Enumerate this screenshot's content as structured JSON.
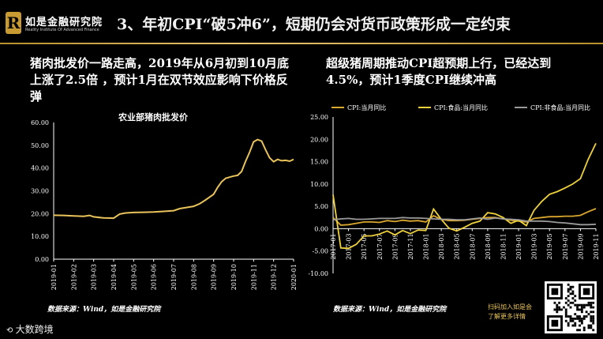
{
  "header": {
    "logo_name": "如是金融研究院",
    "logo_sub": "Reality Institute Of Advanced Finance",
    "title": "3、年初CPI“破5冲6”，短期仍会对货币政策形成一定约束"
  },
  "left_panel": {
    "subtitle": "猪肉批发价一路走高，2019年从6月初到10月底上涨了2.5倍 ，预计1月在双节效应影响下价格反弹",
    "source": "数据来源：Wind，如是金融研究院"
  },
  "right_panel": {
    "subtitle": "超级猪周期推动CPI超预期上行，已经达到4.5%，预计1季度CPI继续冲高",
    "source": "数据来源：Wind，如是金融研究院"
  },
  "footer": {
    "watermark": "大数跨境",
    "qr_caption_line1": "扫码加入如是会",
    "qr_caption_line2": "了解更多详情"
  },
  "chart_data": [
    {
      "type": "line",
      "title": "农业部猪肉批发价",
      "xlabel": "",
      "ylabel": "",
      "ylim": [
        0,
        60
      ],
      "yticks": [
        "0.00",
        "10.00",
        "20.00",
        "30.00",
        "40.00",
        "50.00",
        "60.00"
      ],
      "xticks": [
        "2019-01",
        "2019-02",
        "2019-03",
        "2019-04",
        "2019-05",
        "2019-06",
        "2019-07",
        "2019-08",
        "2019-09",
        "2019-10",
        "2019-11",
        "2019-12",
        "2020-01"
      ],
      "grid": false,
      "color": "#e8c25a",
      "x": [
        0,
        0.5,
        1,
        1.5,
        1.8,
        2,
        2.5,
        3,
        3.3,
        3.6,
        4,
        4.5,
        5,
        5.5,
        6,
        6.3,
        6.6,
        7,
        7.3,
        7.6,
        8,
        8.2,
        8.4,
        8.6,
        8.8,
        9,
        9.2,
        9.4,
        9.6,
        9.8,
        10,
        10.2,
        10.4,
        10.6,
        10.8,
        11,
        11.2,
        11.4,
        11.6,
        11.8,
        12
      ],
      "values": [
        19.3,
        19.2,
        19.0,
        18.8,
        19.2,
        18.6,
        18.1,
        18.0,
        19.8,
        20.3,
        20.5,
        20.6,
        20.7,
        21.0,
        21.3,
        22.2,
        22.6,
        23.2,
        24.3,
        26.0,
        28.5,
        31.5,
        34.0,
        35.5,
        36.0,
        36.5,
        36.8,
        38.5,
        43.0,
        47.0,
        51.5,
        52.5,
        51.8,
        48.0,
        44.5,
        42.8,
        43.8,
        43.2,
        43.4,
        43.0,
        43.8
      ]
    },
    {
      "type": "line",
      "title": "",
      "xlabel": "",
      "ylabel": "",
      "ylim": [
        -10,
        25
      ],
      "yticks": [
        "-10.00",
        "-5.00",
        "0.00",
        "5.00",
        "10.00",
        "15.00",
        "20.00",
        "25.00"
      ],
      "xticks": [
        "2017-01",
        "2017-03",
        "2017-05",
        "2017-07",
        "2017-09",
        "2017-11",
        "2018-01",
        "2018-03",
        "2018-05",
        "2018-07",
        "2018-09",
        "2018-11",
        "2019-01",
        "2019-03",
        "2019-05",
        "2019-07",
        "2019-09",
        "2019-11"
      ],
      "grid": false,
      "legend": "top",
      "x": [
        0,
        1,
        2,
        3,
        4,
        5,
        6,
        7,
        8,
        9,
        10,
        11,
        12,
        13,
        14,
        15,
        16,
        17,
        18,
        19,
        20,
        21,
        22,
        23,
        24,
        25,
        26,
        27,
        28,
        29,
        30,
        31,
        32,
        33,
        34
      ],
      "series": [
        {
          "name": "CPI:当月同比",
          "color": "#d9a62e",
          "values": [
            2.5,
            0.8,
            0.9,
            1.2,
            1.5,
            1.5,
            1.4,
            1.8,
            1.6,
            1.9,
            1.7,
            1.8,
            1.5,
            2.9,
            2.1,
            1.8,
            1.8,
            1.9,
            2.1,
            2.3,
            2.5,
            2.5,
            2.2,
            1.9,
            1.7,
            1.5,
            2.3,
            2.5,
            2.7,
            2.7,
            2.8,
            2.8,
            3.0,
            3.8,
            4.5
          ]
        },
        {
          "name": "CPI:食品:当月同比",
          "color": "#f0d23c",
          "values": [
            7.6,
            -4.3,
            -4.4,
            -3.5,
            -1.6,
            -1.6,
            -1.2,
            -0.5,
            -1.4,
            -0.4,
            -1.1,
            -0.3,
            -0.4,
            4.4,
            2.1,
            0.1,
            -0.5,
            0.3,
            1.2,
            1.7,
            3.6,
            3.3,
            2.5,
            1.2,
            1.9,
            0.7,
            4.1,
            6.1,
            7.7,
            8.3,
            9.1,
            10.0,
            11.2,
            15.5,
            19.1
          ]
        },
        {
          "name": "CPI:非食品:当月同比",
          "color": "#9a9a9a",
          "values": [
            2.0,
            2.2,
            2.3,
            2.1,
            2.1,
            2.2,
            2.3,
            2.3,
            2.3,
            2.5,
            2.4,
            2.4,
            2.3,
            2.2,
            2.1,
            2.1,
            2.0,
            2.0,
            2.2,
            2.4,
            2.1,
            2.4,
            2.2,
            2.1,
            2.0,
            1.7,
            1.7,
            1.7,
            1.6,
            1.4,
            1.3,
            1.1,
            0.9,
            0.9,
            1.0
          ]
        }
      ]
    }
  ]
}
